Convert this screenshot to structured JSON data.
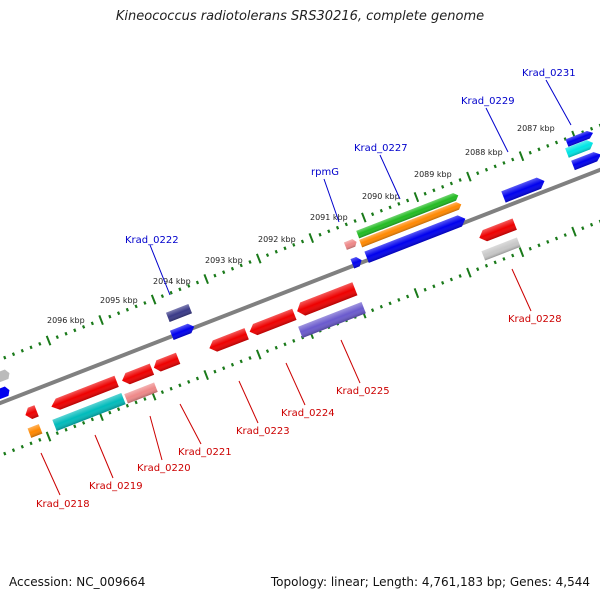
{
  "title": "Kineococcus radiotolerans SRS30216, complete genome",
  "footer": {
    "accession": "Accession: NC_009664",
    "topology": "Topology: linear; Length: 4,761,183 bp; Genes: 4,544"
  },
  "colors": {
    "forward_label": "#0000cc",
    "reverse_label": "#cc0000",
    "backbone": "#808080",
    "tick": "#1a7a1a"
  },
  "scale_labels": [
    "2087 kbp",
    "2088 kbp",
    "2089 kbp",
    "2090 kbp",
    "2091 kbp",
    "2092 kbp",
    "2093 kbp",
    "2094 kbp",
    "2095 kbp",
    "2096 kbp"
  ],
  "gene_labels": {
    "forward": [
      "Krad_0231",
      "Krad_0229",
      "Krad_0227",
      "rpmG",
      "Krad_0222"
    ],
    "reverse": [
      "Krad_0228",
      "Krad_0225",
      "Krad_0224",
      "Krad_0223",
      "Krad_0221",
      "Krad_0220",
      "Krad_0219",
      "Krad_0218"
    ]
  }
}
